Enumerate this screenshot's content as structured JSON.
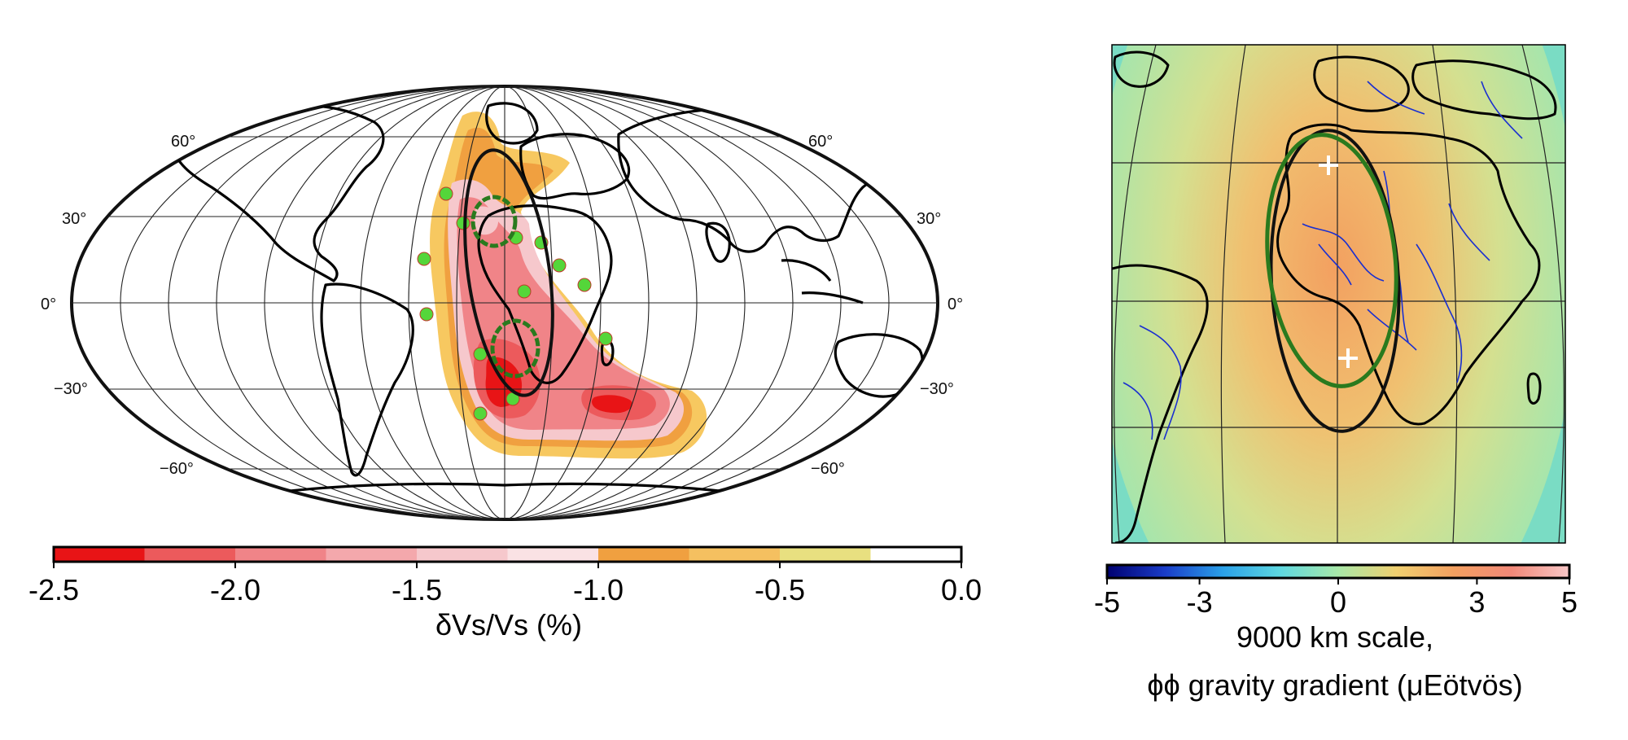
{
  "left_map": {
    "projection": "Mollweide",
    "lat_labels": [
      "60°",
      "30°",
      "0°",
      "−30°",
      "−60°"
    ],
    "colorbar": {
      "label": "δVs/Vs (%)",
      "ticks": [
        "-2.5",
        "-2.0",
        "-1.5",
        "-1.0",
        "-0.5",
        "0.0"
      ],
      "range": [
        -2.5,
        0.0
      ],
      "colors": [
        "#e81416",
        "#ec5a5c",
        "#f08488",
        "#f4a8ac",
        "#f6c8cc",
        "#fae2e4",
        "#f0a040",
        "#f5c060",
        "#e8e080",
        "#ffffff"
      ]
    },
    "marker_color": "#54d63a",
    "ellipse_colors": {
      "black": "#111111",
      "green": "#2a7a1e"
    }
  },
  "right_map": {
    "colorbar": {
      "label_line1": "9000 km scale,",
      "label_line2": "ϕϕ gravity gradient (μEötvös)",
      "ticks": [
        "-5",
        "-3",
        "0",
        "3",
        "5"
      ],
      "range": [
        -5,
        5
      ],
      "colors": [
        "#000070",
        "#1a3cc8",
        "#2aa0e8",
        "#5ed8e0",
        "#a8e8a8",
        "#f0d070",
        "#f3a060",
        "#f28878",
        "#f8c8c8"
      ]
    },
    "cross_markers": 2,
    "river_color": "#1a2fd0"
  }
}
